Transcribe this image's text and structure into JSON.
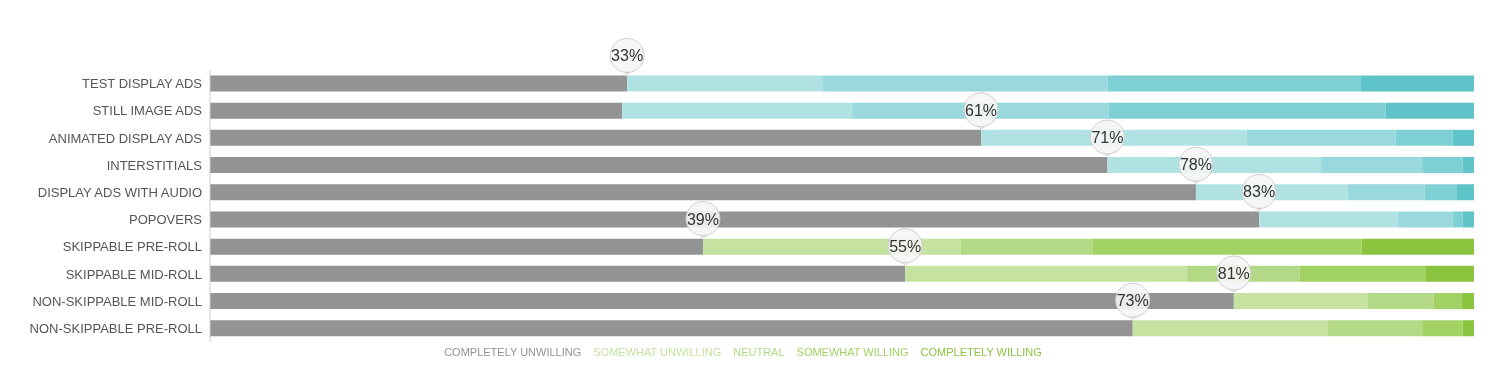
{
  "chart_data": {
    "type": "bar",
    "orientation": "horizontal",
    "stacked": true,
    "categories": [
      "TEST DISPLAY ADS",
      "STILL IMAGE ADS",
      "ANIMATED DISPLAY ADS",
      "INTERSTITIALS",
      "DISPLAY ADS WITH AUDIO",
      "POPOVERS",
      "SKIPPABLE PRE-ROLL",
      "SKIPPABLE MID-ROLL",
      "NON-SKIPPABLE MID-ROLL",
      "NON-SKIPPABLE PRE-ROLL"
    ],
    "xlim": [
      0,
      100
    ],
    "tick_labels": "y",
    "legend": "bottom",
    "series": [
      {
        "name": "COMPLETELY UNWILLING",
        "color": "#939393",
        "values": [
          33,
          32.6,
          61,
          71,
          78,
          83,
          39,
          55,
          81,
          73
        ],
        "value_labels": [
          "33%",
          null,
          "61%",
          "71%",
          "78%",
          "83%",
          "39%",
          "55%",
          "81%",
          "73%"
        ]
      },
      {
        "name": "SOMEWHAT UNWILLING",
        "color": "#c5e2a0",
        "colors": [
          "#b0e2e4",
          "#b0e2e4",
          "#b0e2e4",
          "#b0e2e4",
          "#b0e2e4",
          "#b0e2e4",
          "#c5e2a0",
          "#c5e2a0",
          "#c5e2a0",
          "#c5e2a0"
        ],
        "values": [
          15.5,
          18.2,
          21,
          16.9,
          12,
          11,
          20.4,
          22.3,
          10.6,
          15.4
        ]
      },
      {
        "name": "NEUTRAL",
        "color": "#b3d986",
        "colors": [
          "#99d9dd",
          "#99d9dd",
          "#99d9dd",
          "#99d9dd",
          "#99d9dd",
          "#99d9dd",
          "#b3d986",
          "#b3d986",
          "#b3d986",
          "#b3d986"
        ],
        "values": [
          22.5,
          20.3,
          11.8,
          8,
          6.1,
          4.3,
          10.4,
          8.9,
          5.2,
          7.5
        ]
      },
      {
        "name": "SOMEWHAT WILLING",
        "color": "#a2d264",
        "colors": [
          "#7fd0d4",
          "#7fd0d4",
          "#7fd0d4",
          "#7fd0d4",
          "#7fd0d4",
          "#7fd0d4",
          "#a2d264",
          "#a2d264",
          "#a2d264",
          "#a2d264"
        ],
        "values": [
          20,
          21.9,
          4.5,
          3.2,
          2.5,
          0.8,
          21.3,
          10,
          2.2,
          3.2
        ]
      },
      {
        "name": "COMPLETELY WILLING",
        "color": "#8bc43f",
        "colors": [
          "#5ec4ca",
          "#5ec4ca",
          "#5ec4ca",
          "#5ec4ca",
          "#5ec4ca",
          "#5ec4ca",
          "#8bc43f",
          "#8bc43f",
          "#8bc43f",
          "#8bc43f"
        ],
        "values": [
          9,
          7,
          1.7,
          0.9,
          1.4,
          0.9,
          8.9,
          3.8,
          1,
          0.9
        ]
      }
    ]
  }
}
